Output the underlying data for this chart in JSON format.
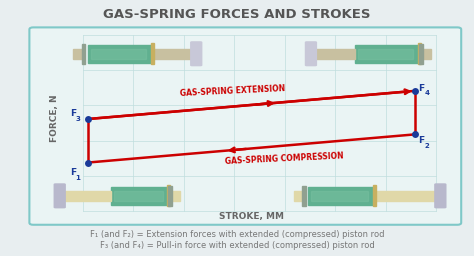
{
  "title": "GAS-SPRING FORCES AND STROKES",
  "title_fontsize": 9.5,
  "title_color": "#555555",
  "bg_color": "#e8eef0",
  "box_bg": "#eaf4f4",
  "box_edge_color": "#7fc8c8",
  "grid_color": "#c0dede",
  "point_color": "#1a3a99",
  "arrow_color": "#cc0000",
  "xlabel": "STROKE, MM",
  "ylabel": "FORCE, N",
  "label_fontsize": 6.5,
  "caption_line1": "F₁ (and F₂) = Extension forces with extended (compressed) piston rod",
  "caption_line2": "F₃ (and F₄) = Pull-in force with extended (compressed) piston rod",
  "caption_fontsize": 6.0,
  "caption_color": "#777777",
  "body_color": "#60b090",
  "body_color2": "#78c0a0",
  "rod_color_top": "#c8c0a0",
  "rod_color_bot": "#e0d8a8",
  "cap_color_top": "#c8c8d8",
  "cap_color_bot": "#b8b8cc",
  "F1": [
    0.185,
    0.365
  ],
  "F2": [
    0.875,
    0.475
  ],
  "F3": [
    0.185,
    0.535
  ],
  "F4": [
    0.875,
    0.645
  ]
}
